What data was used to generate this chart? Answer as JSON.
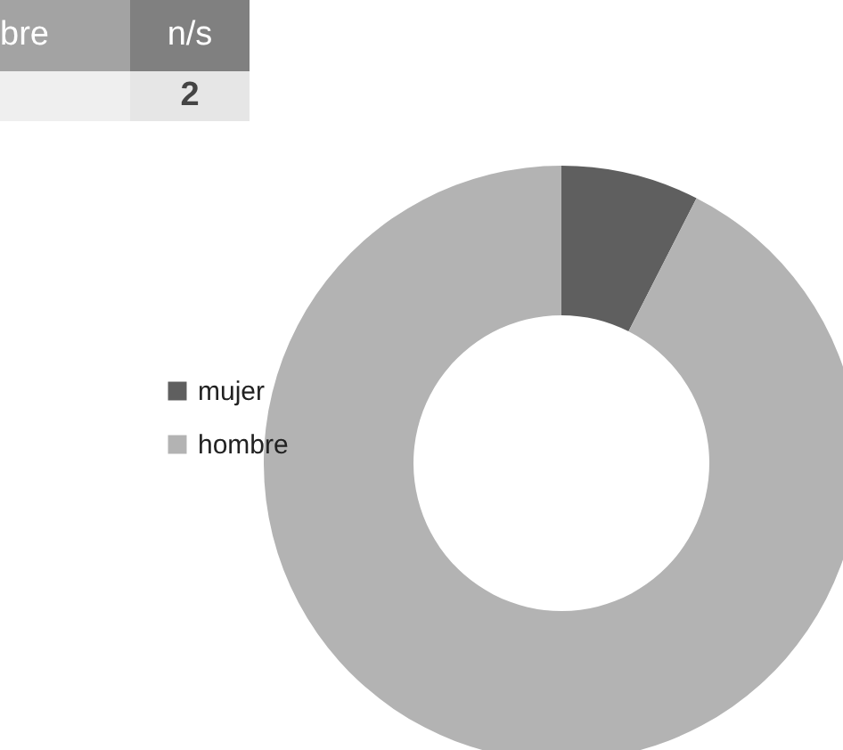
{
  "chart_data": {
    "type": "donut",
    "categories": [
      "mujer",
      "hombre"
    ],
    "values": [
      7.5,
      92.5
    ],
    "colors": [
      "#5f5f5f",
      "#b3b3b3"
    ],
    "legend": "left",
    "annotations": [
      "bre",
      "n/s",
      "2"
    ]
  }
}
